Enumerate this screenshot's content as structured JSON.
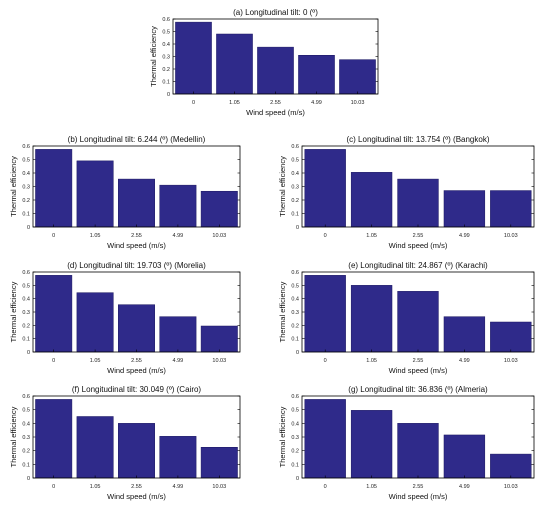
{
  "colors": {
    "bar": "#2f2a8a",
    "frame": "#000000",
    "background": "#ffffff"
  },
  "chart_data": [
    {
      "type": "bar",
      "title": "(a) Longitudinal tilt: 0 (º)",
      "xlabel": "Wind speed (m/s)",
      "ylabel": "Thermal efficiency",
      "categories": [
        "0",
        "1.05",
        "2.55",
        "4.99",
        "10.03"
      ],
      "values": [
        0.575,
        0.48,
        0.375,
        0.31,
        0.275
      ],
      "ylim": [
        0,
        0.6
      ],
      "yticks": [
        "0",
        "0.1",
        "0.2",
        "0.3",
        "0.4",
        "0.5",
        "0.6"
      ],
      "grid": false
    },
    {
      "type": "bar",
      "title": "(b) Longitudinal tilt: 6.244 (º) (Medellin)",
      "xlabel": "Wind speed (m/s)",
      "ylabel": "Thermal efficiency",
      "categories": [
        "0",
        "1.05",
        "2.55",
        "4.99",
        "10.03"
      ],
      "values": [
        0.575,
        0.49,
        0.355,
        0.31,
        0.265
      ],
      "ylim": [
        0,
        0.6
      ],
      "yticks": [
        "0",
        "0.1",
        "0.2",
        "0.3",
        "0.4",
        "0.5",
        "0.6"
      ],
      "grid": false
    },
    {
      "type": "bar",
      "title": "(c) Longitudinal tilt: 13.754 (º) (Bangkok)",
      "xlabel": "Wind speed (m/s)",
      "ylabel": "Thermal efficiency",
      "categories": [
        "0",
        "1.05",
        "2.55",
        "4.99",
        "10.03"
      ],
      "values": [
        0.575,
        0.405,
        0.355,
        0.27,
        0.27
      ],
      "ylim": [
        0,
        0.6
      ],
      "yticks": [
        "0",
        "0.1",
        "0.2",
        "0.3",
        "0.4",
        "0.5",
        "0.6"
      ],
      "grid": false
    },
    {
      "type": "bar",
      "title": "(d) Longitudinal tilt: 19.703 (º) (Morelia)",
      "xlabel": "Wind speed (m/s)",
      "ylabel": "Thermal efficiency",
      "categories": [
        "0",
        "1.05",
        "2.55",
        "4.99",
        "10.03"
      ],
      "values": [
        0.575,
        0.445,
        0.355,
        0.265,
        0.195
      ],
      "ylim": [
        0,
        0.6
      ],
      "yticks": [
        "0",
        "0.1",
        "0.2",
        "0.3",
        "0.4",
        "0.5",
        "0.6"
      ],
      "grid": false
    },
    {
      "type": "bar",
      "title": "(e) Longitudinal tilt: 24.867 (º) (Karachi)",
      "xlabel": "Wind speed (m/s)",
      "ylabel": "Thermal efficiency",
      "categories": [
        "0",
        "1.05",
        "2.55",
        "4.99",
        "10.03"
      ],
      "values": [
        0.575,
        0.5,
        0.455,
        0.265,
        0.225
      ],
      "ylim": [
        0,
        0.6
      ],
      "yticks": [
        "0",
        "0.1",
        "0.2",
        "0.3",
        "0.4",
        "0.5",
        "0.6"
      ],
      "grid": false
    },
    {
      "type": "bar",
      "title": "(f) Longitudinal tilt: 30.049 (º) (Cairo)",
      "xlabel": "Wind speed (m/s)",
      "ylabel": "Thermal efficiency",
      "categories": [
        "0",
        "1.05",
        "2.55",
        "4.99",
        "10.03"
      ],
      "values": [
        0.575,
        0.45,
        0.4,
        0.305,
        0.225
      ],
      "ylim": [
        0,
        0.6
      ],
      "yticks": [
        "0",
        "0.1",
        "0.2",
        "0.3",
        "0.4",
        "0.5",
        "0.6"
      ],
      "grid": false
    },
    {
      "type": "bar",
      "title": "(g) Longitudinal tilt: 36.836 (º) (Almeria)",
      "xlabel": "Wind speed (m/s)",
      "ylabel": "Thermal efficiency",
      "categories": [
        "0",
        "1.05",
        "2.55",
        "4.99",
        "10.03"
      ],
      "values": [
        0.575,
        0.495,
        0.4,
        0.315,
        0.175
      ],
      "ylim": [
        0,
        0.6
      ],
      "yticks": [
        "0",
        "0.1",
        "0.2",
        "0.3",
        "0.4",
        "0.5",
        "0.6"
      ],
      "grid": false
    }
  ]
}
